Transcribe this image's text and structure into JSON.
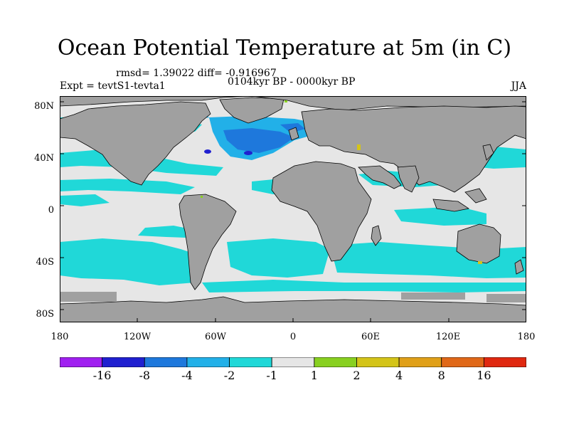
{
  "title": "Ocean Potential Temperature at 5m (in C)",
  "stats": "rmsd= 1.39022  diff= -0.916967",
  "period": "0104kyr BP - 0000kyr BP",
  "experiment": "Expt = tevtS1-tevta1",
  "season": "JJA",
  "lat_labels": [
    "80N",
    "40N",
    "0",
    "40S",
    "80S"
  ],
  "lon_labels": [
    "180",
    "120W",
    "60W",
    "0",
    "60E",
    "120E",
    "180"
  ],
  "colorbar": {
    "labels": [
      "-16",
      "-8",
      "-4",
      "-2",
      "-1",
      "1",
      "2",
      "4",
      "8",
      "16"
    ],
    "colors": [
      "#a020f0",
      "#2020d0",
      "#1e78dc",
      "#22b0e8",
      "#20d8d8",
      "#e6e6e6",
      "#88d020",
      "#d4c418",
      "#e0a018",
      "#e06818",
      "#e02810"
    ]
  },
  "map_colors": {
    "land": "#a0a0a0",
    "neutral": "#e6e6e6",
    "minus1": "#20d8d8",
    "minus2": "#22b0e8",
    "minus4": "#1e78dc",
    "minus8": "#2020d0"
  }
}
